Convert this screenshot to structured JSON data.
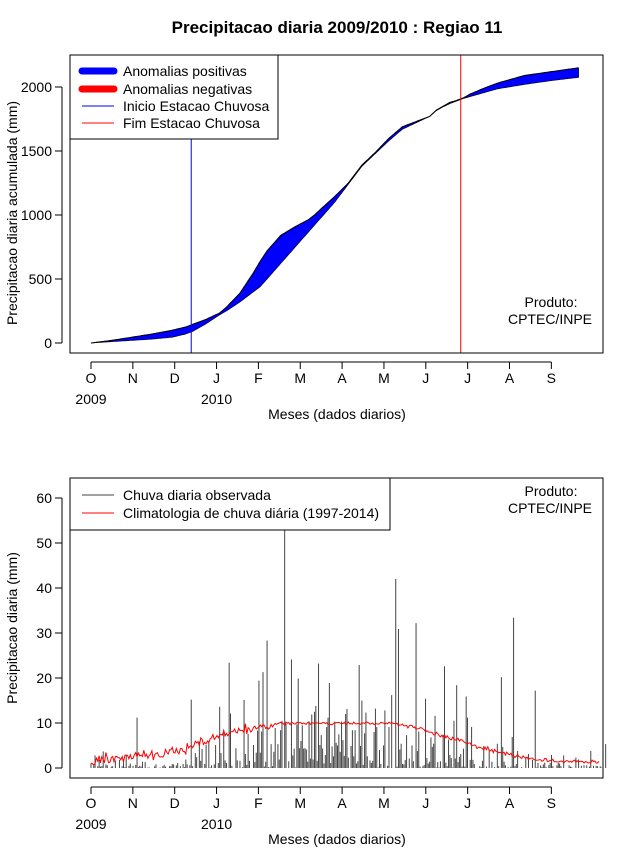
{
  "title": "Precipitacao diaria 2009/2010 : Regiao 11",
  "months": [
    "O",
    "N",
    "D",
    "J",
    "F",
    "M",
    "A",
    "M",
    "J",
    "J",
    "A",
    "S"
  ],
  "year_labels": [
    {
      "text": "2009",
      "month_index": 0
    },
    {
      "text": "2010",
      "month_index": 3
    }
  ],
  "product_label": {
    "line1": "Produto:",
    "line2": "CPTEC/INPE"
  },
  "colors": {
    "positive": "#0000ff",
    "negative": "#ff0000",
    "observed": "#444444",
    "climatology": "#ff0000",
    "start": "#0000ff",
    "end": "#ff0000"
  },
  "chart_data": [
    {
      "type": "area",
      "ylabel": "Precipitacao diaria acumulada (mm)",
      "xlabel": "Meses (dados diarios)",
      "ylim": [
        0,
        2250
      ],
      "yticks": [
        0,
        500,
        1000,
        1500,
        2000
      ],
      "legend_position": "top-left",
      "legend": [
        "Anomalias positivas",
        "Anomalias negativas",
        "Inicio Estacao Chuvosa",
        "Fim Estacao Chuvosa"
      ],
      "rainy_season_start_day": 74,
      "rainy_season_end_day": 273,
      "days": [
        0,
        15,
        30,
        45,
        60,
        70,
        75,
        85,
        95,
        100,
        110,
        120,
        125,
        130,
        135,
        140,
        150,
        160,
        165,
        170,
        180,
        190,
        200,
        210,
        220,
        230,
        240,
        250,
        255,
        260,
        265,
        270,
        275,
        280,
        290,
        300,
        320,
        340,
        360
      ],
      "observed_cumulative": [
        0,
        20,
        45,
        70,
        100,
        125,
        145,
        185,
        235,
        280,
        390,
        550,
        640,
        720,
        780,
        840,
        905,
        960,
        1000,
        1050,
        1145,
        1250,
        1390,
        1490,
        1600,
        1690,
        1730,
        1770,
        1820,
        1850,
        1880,
        1895,
        1915,
        1945,
        1990,
        2030,
        2090,
        2120,
        2150
      ],
      "climatology_cumulative": [
        0,
        10,
        20,
        30,
        45,
        70,
        90,
        150,
        220,
        250,
        320,
        400,
        440,
        500,
        560,
        620,
        740,
        860,
        920,
        980,
        1100,
        1240,
        1380,
        1480,
        1580,
        1670,
        1720,
        1770,
        1815,
        1845,
        1870,
        1890,
        1910,
        1925,
        1955,
        1985,
        2020,
        2050,
        2075
      ]
    },
    {
      "type": "bar",
      "ylabel": "Precipitacao diaria (mm)",
      "xlabel": "Meses (dados diarios)",
      "ylim": [
        0,
        65
      ],
      "yticks": [
        0,
        10,
        20,
        30,
        40,
        50,
        60
      ],
      "legend_position": "top-left",
      "legend": [
        "Chuva diaria observada",
        "Climatologia de chuva diária (1997-2014)"
      ],
      "observed_daily": [
        1.0,
        0.0,
        0.6,
        2.8,
        0.0,
        0.4,
        1.8,
        0.3,
        0.4,
        3.7,
        0.0,
        0.8,
        0.6,
        0.0,
        0.0,
        0.3,
        0.4,
        0.0,
        1.7,
        0.0,
        0.0,
        1.8,
        0.0,
        0.4,
        1.3,
        0.2,
        3.0,
        0.0,
        0.5,
        1.0,
        0.0,
        0.5,
        0.0,
        0.7,
        11.2,
        0.2,
        0.5,
        0.3,
        1.4,
        0.0,
        1.3,
        0.0,
        0.1,
        0.1,
        0.0,
        0.0,
        0.0,
        0.4,
        0.8,
        0.0,
        0.0,
        0.1,
        0.0,
        0.4,
        0.7,
        0.3,
        0.0,
        0.0,
        0.4,
        0.4,
        0.9,
        0.8,
        0.0,
        0.6,
        1.1,
        0.0,
        0.4,
        0.0,
        0.9,
        0.2,
        1.9,
        0.8,
        0.0,
        0.6,
        15.2,
        0.4,
        0.0,
        3.3,
        2.4,
        0.0,
        5.9,
        1.6,
        4.2,
        0.0,
        0.9,
        5.1,
        0.0,
        6.0,
        0.1,
        0.6,
        0.0,
        0.8,
        5.1,
        0.0,
        1.1,
        13.6,
        3.3,
        0.0,
        7.8,
        1.7,
        1.1,
        0.0,
        23.4,
        12.1,
        0.5,
        0.0,
        0.0,
        4.4,
        1.7,
        0.0,
        1.6,
        0.0,
        0.2,
        15.1,
        3.1,
        0.7,
        7.6,
        1.6,
        0.0,
        0.0,
        5.1,
        1.3,
        3.4,
        8.3,
        19.4,
        3.4,
        8.1,
        21.3,
        0.3,
        1.4,
        28.3,
        0.2,
        0.1,
        5.3,
        0.4,
        3.6,
        8.9,
        0.0,
        5.3,
        1.9,
        8.4,
        10.5,
        0.0,
        53.3,
        9.9,
        0.0,
        1.5,
        0.0,
        24.1,
        2.8,
        4.3,
        0.1,
        9.7,
        19.9,
        4.4,
        6.0,
        9.5,
        4.3,
        4.4,
        4.1,
        1.4,
        10.4,
        2.1,
        11.9,
        1.9,
        12.5,
        13.8,
        1.6,
        23.2,
        5.1,
        7.3,
        4.3,
        1.0,
        2.9,
        9.1,
        11.2,
        18.9,
        1.1,
        4.8,
        2.6,
        10.3,
        5.6,
        5.0,
        7.5,
        3.6,
        10.3,
        6.2,
        2.7,
        12.0,
        13.1,
        2.3,
        0.0,
        4.9,
        8.4,
        2.6,
        8.4,
        1.0,
        1.5,
        22.9,
        4.9,
        15.0,
        0.7,
        7.7,
        12.3,
        2.6,
        0.0,
        1.7,
        1.1,
        1.6,
        8.0,
        13.2,
        9.1,
        0.1,
        4.0,
        0.9,
        0.0,
        5.0,
        12.8,
        0.0,
        0.5,
        9.1,
        0.0,
        16.2,
        0.0,
        0.0,
        42.0,
        0.3,
        30.9,
        4.1,
        5.4,
        0.9,
        0.8,
        1.8,
        7.3,
        0.0,
        2.1,
        0.0,
        5.0,
        1.5,
        0.0,
        32.2,
        3.8,
        8.1,
        0.3,
        0.0,
        0.4,
        0.7,
        15.4,
        2.2,
        1.0,
        1.4,
        6.8,
        4.7,
        5.4,
        11.6,
        0.1,
        1.3,
        0.1,
        1.5,
        0.0,
        7.4,
        22.6,
        1.2,
        0.4,
        6.3,
        2.9,
        2.2,
        0.1,
        10.5,
        2.1,
        18.4,
        1.3,
        2.5,
        3.1,
        0.3,
        4.3,
        0.3,
        15.9,
        11.2,
        0.0,
        1.8,
        9.1,
        1.8,
        0.9,
        0.0,
        0.0,
        0.0,
        0.4,
        0.2,
        1.6,
        4.9,
        0.0,
        0.3,
        0.0,
        4.1,
        0.0,
        1.4,
        0.0,
        0.2,
        0.0,
        5.4,
        0.4,
        0.0,
        20.2,
        4.7,
        1.4,
        0.6,
        0.0,
        0.2,
        0.0,
        0.3,
        6.9,
        33.4,
        0.4,
        0.9,
        3.8,
        0.0,
        0.0,
        0.2,
        0.0,
        0.0,
        2.4,
        0.0,
        3.1,
        0.0,
        0.0,
        1.8,
        0.0,
        17.2,
        0.1,
        1.1,
        0.0,
        0.6,
        0.2,
        0.8,
        1.2,
        0.2,
        0.0,
        0.6,
        1.1,
        2.9,
        0.4,
        0.0,
        0.0,
        0.6,
        1.1,
        1.0,
        0.4,
        0.0,
        2.8,
        0.0,
        0.0,
        0.0,
        0.6,
        0.3,
        0.2,
        0.0,
        0.0,
        2.3,
        0.0,
        1.9,
        0.0,
        0.5,
        0.0,
        0.6,
        0.0,
        0.6,
        0.0,
        0.3,
        3.8,
        0.0,
        0.5,
        0.0,
        0.5,
        0.4,
        0.0,
        0.4,
        0.1,
        0.0,
        0.0,
        5.3
      ],
      "climatology_daily": [
        1.08,
        0.96,
        0.68,
        1.05,
        2.21,
        1.52,
        2.7,
        1.16,
        2.52,
        1.84,
        1.29,
        3.45,
        2.25,
        1.18,
        1.32,
        2.31,
        2.56,
        1.41,
        2.55,
        2.57,
        2.29,
        2.28,
        1.83,
        2.54,
        1.36,
        2.79,
        2.9,
        2.78,
        2.05,
        2.96,
        2.05,
        2.12,
        2.92,
        3.43,
        2.52,
        3.34,
        2.67,
        2.89,
        2.56,
        3.95,
        2.6,
        3.07,
        2.17,
        2.78,
        3.06,
        3.82,
        1.79,
        2.93,
        3.24,
        3.4,
        2.68,
        2.45,
        2.51,
        2.41,
        2.89,
        4.14,
        3.47,
        3.11,
        4.05,
        4.03,
        4.57,
        3.42,
        3.33,
        4.34,
        3.49,
        3.15,
        4.28,
        4.37,
        3.68,
        3.65,
        3.13,
        5.51,
        4.45,
        4.78,
        4.99,
        4.51,
        5.01,
        5.95,
        5.57,
        5.86,
        4.91,
        6.69,
        6.38,
        5.22,
        5.7,
        5.35,
        6.01,
        5.65,
        6.5,
        6.72,
        7.45,
        6.36,
        6.74,
        7.2,
        6.74,
        7.32,
        7.49,
        7.32,
        8.37,
        7.16,
        7.67,
        7.17,
        7.58,
        8.07,
        8.06,
        8.16,
        8.67,
        7.91,
        7.81,
        8.82,
        8.3,
        8.36,
        8.35,
        7.83,
        9.84,
        7.58,
        8.96,
        8.63,
        7.98,
        8.35,
        9.05,
        9.29,
        8.68,
        8.89,
        9.0,
        9.54,
        9.18,
        9.71,
        9.45,
        8.81,
        9.12,
        8.66,
        8.94,
        9.66,
        9.13,
        9.59,
        9.88,
        9.66,
        9.9,
        9.99,
        10.16,
        9.99,
        9.9,
        9.46,
        10.2,
        9.95,
        10.12,
        9.62,
        10.14,
        10.04,
        9.8,
        9.78,
        10.14,
        10.12,
        10.04,
        10.07,
        9.8,
        10.01,
        9.81,
        9.72,
        10.1,
        10.02,
        9.68,
        10.07,
        10.01,
        9.92,
        10.04,
        9.99,
        10.04,
        9.92,
        9.87,
        10.11,
        10.08,
        9.88,
        10.07,
        9.7,
        9.77,
        9.66,
        9.61,
        9.89,
        10.09,
        10.04,
        10.09,
        10.14,
        9.97,
        9.95,
        9.84,
        10.17,
        9.62,
        9.83,
        10.22,
        9.79,
        9.89,
        9.76,
        10.2,
        9.87,
        9.78,
        9.86,
        9.91,
        9.68,
        9.91,
        10.02,
        9.93,
        10.25,
        10.2,
        10.03,
        9.72,
        9.86,
        9.98,
        9.64,
        9.85,
        9.84,
        9.74,
        9.83,
        10.13,
        10.05,
        10.0,
        9.81,
        9.95,
        9.82,
        10.18,
        9.96,
        10.08,
        9.94,
        9.86,
        9.87,
        9.95,
        9.43,
        9.55,
        9.58,
        9.77,
        9.36,
        9.37,
        9.47,
        8.9,
        9.37,
        9.5,
        9.44,
        9.01,
        9.13,
        8.57,
        8.72,
        8.75,
        8.94,
        8.94,
        8.68,
        8.51,
        8.04,
        8.27,
        8.05,
        7.96,
        7.98,
        7.84,
        7.38,
        7.32,
        7.95,
        7.69,
        7.19,
        6.91,
        7.27,
        6.83,
        7.4,
        6.71,
        7.16,
        6.7,
        6.43,
        6.25,
        6.85,
        6.43,
        6.19,
        6.27,
        6.61,
        5.99,
        6.32,
        6.23,
        5.9,
        5.7,
        5.53,
        5.46,
        5.53,
        5.58,
        4.99,
        5.02,
        5.12,
        5.07,
        4.34,
        4.58,
        4.63,
        4.49,
        4.32,
        3.98,
        4.64,
        4.08,
        4.73,
        3.9,
        3.82,
        4.14,
        3.41,
        4.13,
        3.7,
        3.69,
        3.4,
        3.5,
        3.35,
        3.33,
        3.5,
        2.84,
        3.53,
        3.12,
        2.97,
        3.29,
        2.6,
        2.79,
        2.34,
        2.59,
        3.02,
        2.51,
        2.41,
        2.12,
        2.7,
        2.35,
        2.17,
        2.42,
        1.84,
        2.16,
        2.2,
        2.21,
        1.86,
        1.79,
        1.73,
        1.75,
        1.84,
        1.85,
        1.49,
        1.65,
        2.1,
        2.14,
        1.44,
        1.46,
        1.71,
        1.61,
        1.95,
        1.42,
        1.41,
        1.36,
        1.3,
        1.45,
        1.56,
        1.52,
        1.13,
        1.43,
        1.64,
        1.59,
        1.32,
        1.53,
        1.26,
        1.61,
        1.75,
        1.29,
        1.59,
        1.38,
        1.47,
        1.49,
        1.44,
        1.11,
        1.43,
        1.34,
        1.1,
        1.16,
        1.16,
        1.75,
        1.43,
        1.58,
        1.1,
        1.12,
        1.5
      ]
    }
  ]
}
